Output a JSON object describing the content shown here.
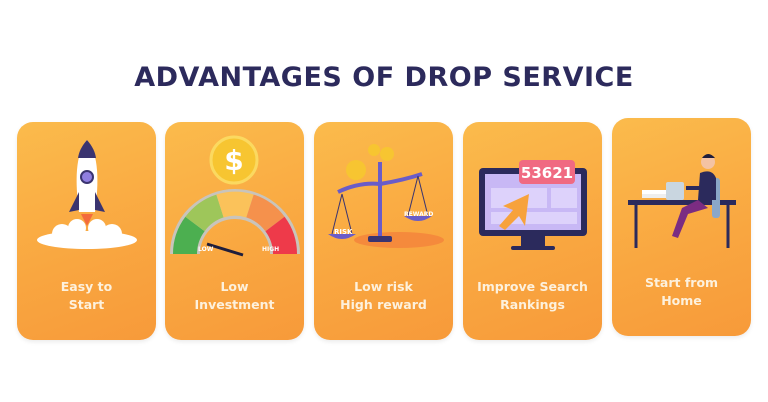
{
  "title": "ADVANTAGES OF DROP SERVICE",
  "colors": {
    "title": "#2c2a5c",
    "card": "#f9a640",
    "label": "#fdf1dd"
  },
  "cards": [
    {
      "line1": "Easy to",
      "line2": "Start",
      "icon": "rocket-icon"
    },
    {
      "line1": "Low",
      "line2": "Investment",
      "icon": "gauge-coin-icon",
      "gauge_low": "LOW",
      "gauge_high": "HIGH"
    },
    {
      "line1": "Low risk",
      "line2": "High reward",
      "icon": "scale-icon",
      "risk": "RISK",
      "reward": "REWARD"
    },
    {
      "line1": "Improve Search",
      "line2": "Rankings",
      "icon": "monitor-icon",
      "counter": "53621"
    },
    {
      "line1": "Start from",
      "line2": "Home",
      "icon": "person-at-desk-icon"
    }
  ]
}
